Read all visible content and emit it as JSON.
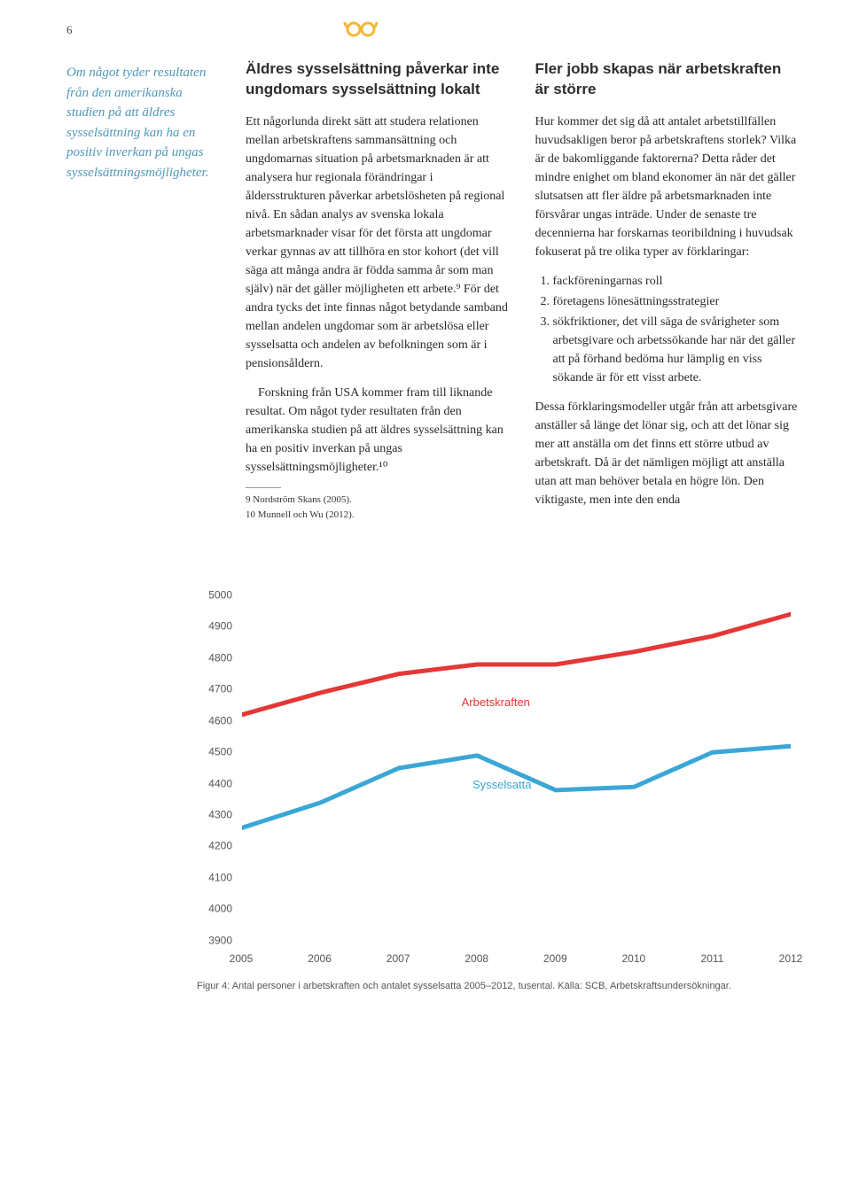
{
  "page_number": "6",
  "goggles_color": "#f6b733",
  "sidebar_quote": "Om något tyder resultaten från den amerikanska studien på att äldres sysselsättning kan ha en positiv inverkan på ungas sysselsättningsmöjligheter.",
  "col1": {
    "heading": "Äldres sysselsättning påverkar inte ungdomars sysselsättning lokalt",
    "para1": "Ett någorlunda direkt sätt att studera relationen mellan arbetskraftens sammansättning och ungdomarnas situation på arbetsmarknaden är att analysera hur regionala förändringar i åldersstrukturen påverkar arbetslösheten på regional nivå. En sådan analys av svenska lokala arbetsmarknader visar för det första att ungdomar verkar gynnas av att tillhöra en stor kohort (det vill säga att många andra är födda samma år som man själv) när det gäller möjligheten ett arbete.⁹ För det andra tycks det inte finnas något betydande samband mellan andelen ungdomar som är arbetslösa eller sysselsatta och andelen av befolkningen som är i pensionsåldern.",
    "para2": "Forskning från USA kommer fram till liknande resultat. Om något tyder resultaten från den amerikanska studien på att äldres sysselsättning kan ha en positiv inverkan på ungas sysselsättningsmöjligheter.¹⁰",
    "fn9": "9   Nordström Skans (2005).",
    "fn10": "10  Munnell och Wu (2012)."
  },
  "col2": {
    "heading": "Fler jobb skapas när arbetskraften är större",
    "para1": "Hur kommer det sig då att antalet arbetstillfällen huvudsakligen beror på arbetskraftens storlek? Vilka är de bakomliggande faktorerna? Detta råder det mindre enighet om bland ekonomer än när det gäller slutsatsen att fler äldre på arbetsmarknaden inte försvårar ungas inträde. Under de senaste tre decennierna har forskarnas teoribildning i huvudsak fokuserat på tre olika typer av förklaringar:",
    "list": [
      "fackföreningarnas roll",
      "företagens lönesättningsstrategier",
      "sökfriktioner, det vill säga de svårigheter som arbetsgivare och arbetssökande har när det gäller att på förhand bedöma hur lämplig en viss sökande är för ett visst arbete."
    ],
    "para2": "Dessa förklaringsmodeller utgår från att arbetsgivare anställer så länge det lönar sig, och att det lönar sig mer att anställa om det finns ett större utbud av arbetskraft. Då är det nämligen möjligt att anställa utan att man behöver betala en högre lön. Den viktigaste, men inte den enda"
  },
  "chart": {
    "type": "line",
    "background_color": "#ffffff",
    "x_years": [
      2005,
      2006,
      2007,
      2008,
      2009,
      2010,
      2011,
      2012
    ],
    "y_min": 3900,
    "y_max": 5000,
    "y_step": 100,
    "axis_font_size": 12,
    "axis_color": "#555555",
    "series": [
      {
        "name": "Arbetskraften",
        "color": "#e53737",
        "stroke_width": 5,
        "label_x": 0.4,
        "label_y": 4660,
        "values": [
          4620,
          4690,
          4750,
          4780,
          4780,
          4820,
          4870,
          4940
        ]
      },
      {
        "name": "Sysselsatta",
        "color": "#3aa7d6",
        "stroke_width": 5,
        "label_x": 0.42,
        "label_y": 4400,
        "values": [
          4260,
          4340,
          4450,
          4490,
          4380,
          4390,
          4500,
          4520
        ]
      }
    ]
  },
  "caption": "Figur 4: Antal personer i arbetskraften och antalet sysselsatta 2005–2012, tusental. Källa: SCB, Arbetskraftsundersökningar."
}
